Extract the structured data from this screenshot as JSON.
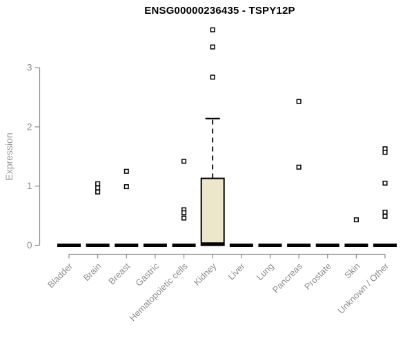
{
  "chart_data": {
    "type": "boxplot",
    "title": "ENSG00000236435 - TSPY12P",
    "ylabel": "Expression",
    "xlabel": "",
    "y_ticks": [
      0,
      1,
      2,
      3
    ],
    "ylim": [
      0,
      3.8
    ],
    "grid": false,
    "legend": false,
    "categories": [
      {
        "label": "Bladder",
        "q1": 0,
        "median": 0,
        "q3": 0,
        "whisker_high": null,
        "outliers": []
      },
      {
        "label": "Brain",
        "q1": 0,
        "median": 0,
        "q3": 0,
        "whisker_high": null,
        "outliers": [
          1.04,
          0.97,
          0.9
        ]
      },
      {
        "label": "Breast",
        "q1": 0,
        "median": 0,
        "q3": 0,
        "whisker_high": null,
        "outliers": [
          1.25,
          0.99
        ]
      },
      {
        "label": "Gastric",
        "q1": 0,
        "median": 0,
        "q3": 0,
        "whisker_high": null,
        "outliers": []
      },
      {
        "label": "Hematopoietic cells",
        "q1": 0,
        "median": 0,
        "q3": 0,
        "whisker_high": null,
        "outliers": [
          1.42,
          0.6,
          0.55,
          0.46
        ]
      },
      {
        "label": "Kidney",
        "q1": 0,
        "median": 0.02,
        "q3": 1.13,
        "whisker_high": 2.14,
        "outliers": [
          2.84,
          3.35,
          3.64
        ]
      },
      {
        "label": "Liver",
        "q1": 0,
        "median": 0,
        "q3": 0,
        "whisker_high": null,
        "outliers": []
      },
      {
        "label": "Lung",
        "q1": 0,
        "median": 0,
        "q3": 0,
        "whisker_high": null,
        "outliers": []
      },
      {
        "label": "Pancreas",
        "q1": 0,
        "median": 0,
        "q3": 0,
        "whisker_high": null,
        "outliers": [
          2.43,
          1.32
        ]
      },
      {
        "label": "Prostate",
        "q1": 0,
        "median": 0,
        "q3": 0,
        "whisker_high": null,
        "outliers": []
      },
      {
        "label": "Skin",
        "q1": 0,
        "median": 0,
        "q3": 0,
        "whisker_high": null,
        "outliers": [
          0.43
        ]
      },
      {
        "label": "Unknown / Other",
        "q1": 0,
        "median": 0,
        "q3": 0,
        "whisker_high": null,
        "outliers": [
          1.63,
          1.57,
          1.05,
          0.56,
          0.49
        ]
      }
    ],
    "colors": {
      "box_fill": "#ece6cb",
      "box_border": "#000000",
      "median": "#000000",
      "outlier_stroke": "#000000",
      "outlier_fill": "#ffffff",
      "axis": "#8c8c8c",
      "tick_label": "#8c8c8c",
      "axis_label": "#999999",
      "title": "#000000",
      "background": "#ffffff"
    }
  }
}
